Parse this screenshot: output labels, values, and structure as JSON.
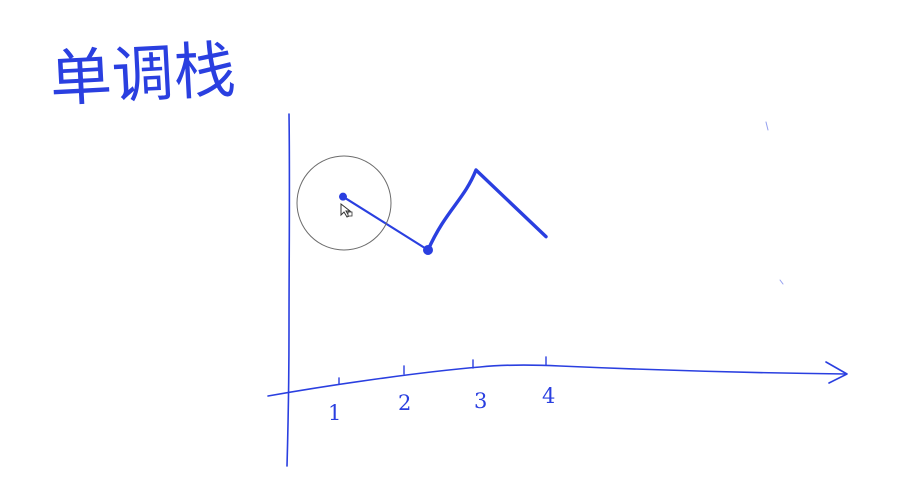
{
  "canvas": {
    "background": "#ffffff",
    "ink_color": "#2a3fe0",
    "cursor_ring_color": "#6b6b6b"
  },
  "heading": {
    "text": "单调栈"
  },
  "axis": {
    "tick_labels": [
      "1",
      "2",
      "3",
      "4"
    ]
  },
  "chart_data": {
    "type": "line",
    "x": [
      1,
      2,
      3,
      4
    ],
    "categories": [
      "1",
      "2",
      "3",
      "4"
    ],
    "title": "",
    "xlabel": "",
    "ylabel": "",
    "series": [
      {
        "values": [
          3,
          1.8,
          3.6,
          2.1
        ]
      }
    ],
    "grid": false,
    "legend": "none"
  },
  "cursor": {
    "icon": "pen-cursor-icon",
    "highlight": "circle-ring"
  }
}
